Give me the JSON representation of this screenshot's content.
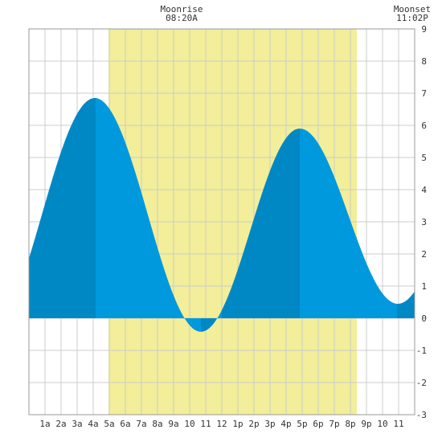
{
  "header": {
    "moonrise_label": "Moonrise",
    "moonrise_time": "08:20A",
    "moonset_label": "Moonset",
    "moonset_time": "11:02P"
  },
  "colors": {
    "daylight": "#f2ee99",
    "water_light": "#0099dd",
    "water_dark": "#0088c4",
    "grid": "#cccccc",
    "frame": "#999999"
  },
  "chart_data": {
    "type": "area",
    "title": "",
    "xlabel": "",
    "ylabel": "",
    "xlim": [
      0,
      24
    ],
    "ylim": [
      -3,
      9
    ],
    "x_tick_values": [
      1,
      2,
      3,
      4,
      5,
      6,
      7,
      8,
      9,
      10,
      11,
      12,
      13,
      14,
      15,
      16,
      17,
      18,
      19,
      20,
      21,
      22,
      23
    ],
    "x_tick_labels": [
      "1a",
      "2a",
      "3a",
      "4a",
      "5a",
      "6a",
      "7a",
      "8a",
      "9a",
      "10",
      "11",
      "12",
      "1p",
      "2p",
      "3p",
      "4p",
      "5p",
      "6p",
      "7p",
      "8p",
      "9p",
      "10",
      "11"
    ],
    "y_ticks": [
      -3,
      -2,
      -1,
      0,
      1,
      2,
      3,
      4,
      5,
      6,
      7,
      8,
      9
    ],
    "grid": true,
    "daylight_shading": {
      "start": 4.95,
      "end": 20.4
    },
    "tide_extrema": [
      {
        "x": 4.1,
        "y": 6.85
      },
      {
        "x": 10.7,
        "y": -0.42
      },
      {
        "x": 16.85,
        "y": 5.9
      },
      {
        "x": 22.95,
        "y": 0.45
      }
    ],
    "series": [
      {
        "x": [
          0,
          1,
          2,
          3,
          4,
          5,
          6,
          7,
          8,
          9,
          10,
          11,
          12,
          13,
          14,
          15,
          16,
          17,
          18,
          19,
          20,
          21,
          22,
          23,
          24
        ],
        "values": [
          1.85,
          3.7,
          5.5,
          6.6,
          6.8,
          6.4,
          5.0,
          3.0,
          1.1,
          0.0,
          -0.3,
          -0.35,
          0.25,
          1.75,
          3.6,
          5.0,
          5.8,
          5.85,
          5.2,
          4.0,
          2.55,
          1.25,
          0.55,
          0.45,
          0.9
        ]
      }
    ],
    "shaded_bands": [
      {
        "start": 0,
        "end": 4.15,
        "shade": "dark"
      },
      {
        "start": 4.15,
        "end": 10.7,
        "shade": "light"
      },
      {
        "start": 10.7,
        "end": 11.6,
        "shade": "dark"
      },
      {
        "start": 11.6,
        "end": 12.0,
        "shade": "light"
      },
      {
        "start": 12.0,
        "end": 16.85,
        "shade": "dark"
      },
      {
        "start": 16.85,
        "end": 22.9,
        "shade": "light"
      },
      {
        "start": 22.9,
        "end": 24,
        "shade": "dark"
      }
    ]
  }
}
